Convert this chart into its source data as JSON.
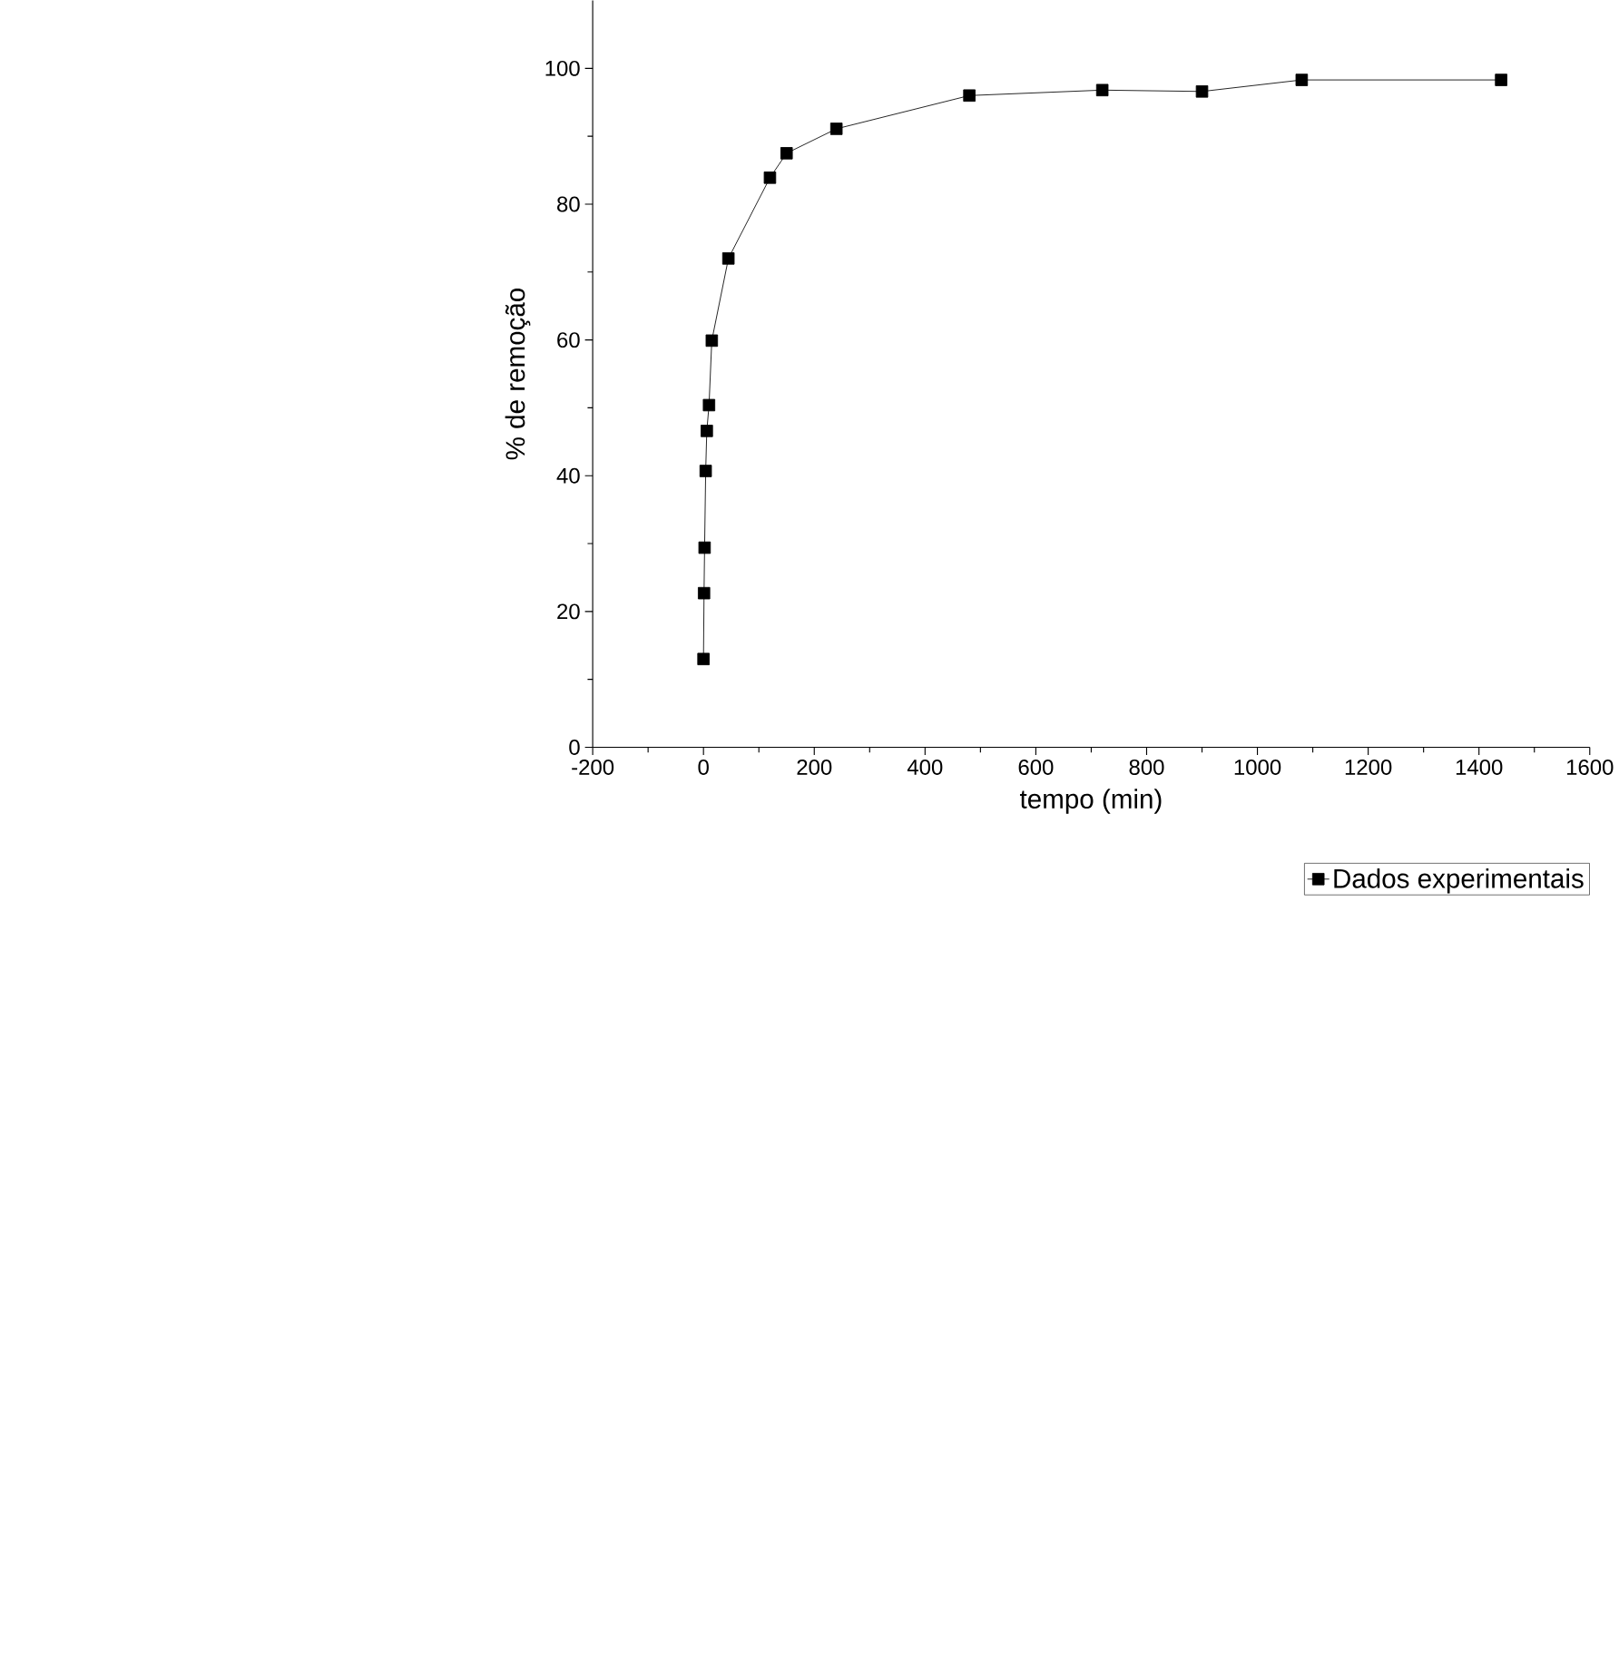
{
  "chart_data": {
    "type": "line",
    "xlabel": "tempo (min)",
    "ylabel": "% de remoção",
    "x": [
      0,
      1,
      2,
      4,
      6,
      10,
      15,
      45,
      120,
      150,
      240,
      480,
      720,
      900,
      1080,
      1440
    ],
    "series": [
      {
        "name": "Dados experimentais",
        "color": "#000000",
        "values": [
          13.0,
          22.7,
          29.4,
          40.7,
          46.6,
          50.4,
          59.9,
          72.0,
          83.9,
          87.5,
          91.1,
          96.0,
          96.8,
          96.6,
          98.3,
          98.3
        ]
      }
    ],
    "xlim": [
      -200,
      1600
    ],
    "ylim": [
      0,
      110
    ],
    "xticks": [
      -200,
      0,
      200,
      400,
      600,
      800,
      1000,
      1200,
      1400,
      1600
    ],
    "yticks": [
      0,
      20,
      40,
      60,
      80,
      100
    ],
    "marker": "square",
    "line_style": "solid",
    "legend": "bottom right",
    "grid": false
  }
}
